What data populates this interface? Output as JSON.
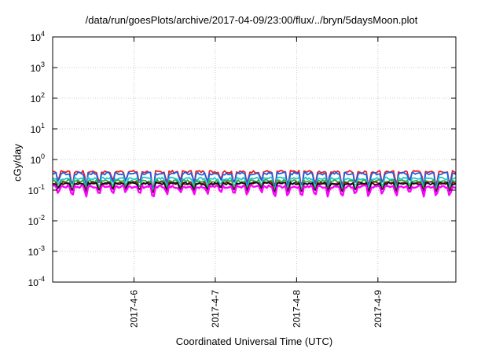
{
  "chart_data": {
    "type": "line",
    "title": "/data/run/goesPlots/archive/2017-04-09/23:00/flux/../bryn/5daysMoon.plot",
    "xlabel": "Coordinated Universal Time (UTC)",
    "ylabel": "cGy/day",
    "yscale": "log",
    "ylim": [
      0.0001,
      10000
    ],
    "xlim": [
      "2017-04-05T00:00",
      "2017-04-09T23:00"
    ],
    "grid": true,
    "x_ticks": [
      "2017-4-6",
      "2017-4-7",
      "2017-4-8",
      "2017-4-9"
    ],
    "y_ticks": [
      {
        "base": "10",
        "exp": "4"
      },
      {
        "base": "10",
        "exp": "3"
      },
      {
        "base": "10",
        "exp": "2"
      },
      {
        "base": "10",
        "exp": "1"
      },
      {
        "base": "10",
        "exp": "0"
      },
      {
        "base": "10",
        "exp": "-1"
      },
      {
        "base": "10",
        "exp": "-2"
      },
      {
        "base": "10",
        "exp": "-3"
      },
      {
        "base": "10",
        "exp": "-4"
      }
    ],
    "series": [
      {
        "color": "#ee1c24",
        "baseline": 0.4,
        "dip": 0.12
      },
      {
        "color": "#1f5fe0",
        "baseline": 0.35,
        "dip": 0.11
      },
      {
        "color": "#20c8c8",
        "baseline": 0.24,
        "dip": 0.1
      },
      {
        "color": "#2da84a",
        "baseline": 0.2,
        "dip": 0.09
      },
      {
        "color": "#8b1a1a",
        "baseline": 0.17,
        "dip": 0.085
      },
      {
        "color": "#111111",
        "baseline": 0.165,
        "dip": 0.08
      },
      {
        "color": "#ff00ff",
        "baseline": 0.13,
        "dip": 0.06
      }
    ]
  }
}
